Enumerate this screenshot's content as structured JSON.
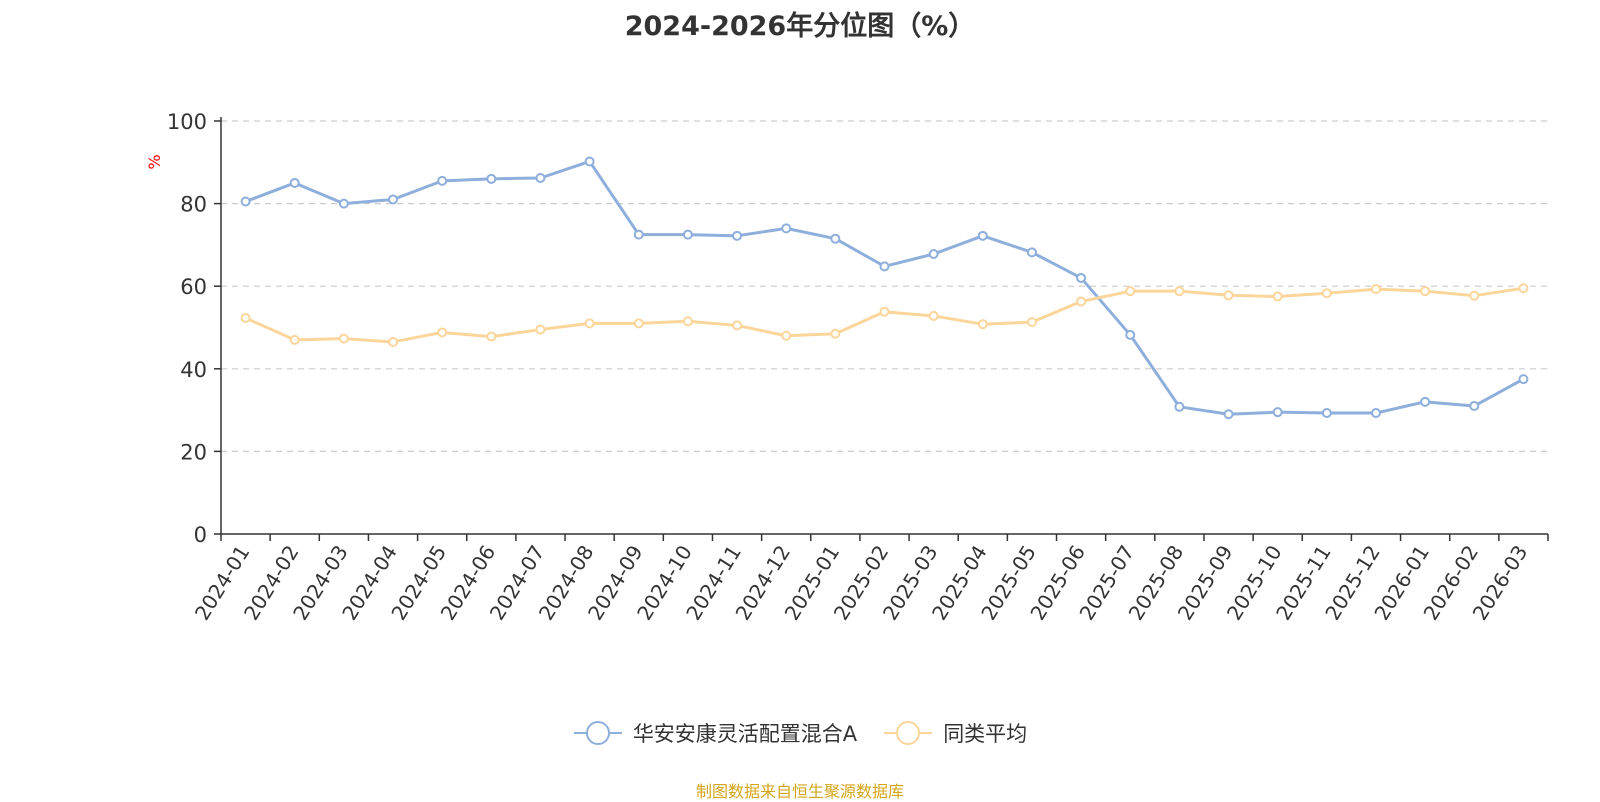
{
  "chart_data": {
    "type": "line",
    "title": "2024-2026年分位图（%）",
    "ylabel": "%",
    "xlabel": "",
    "ylim": [
      0,
      100
    ],
    "yticks": [
      0,
      20,
      40,
      60,
      80,
      100
    ],
    "grid": true,
    "legend_position": "bottom",
    "categories": [
      "2024-01",
      "2024-02",
      "2024-03",
      "2024-04",
      "2024-05",
      "2024-06",
      "2024-07",
      "2024-08",
      "2024-09",
      "2024-10",
      "2024-11",
      "2024-12",
      "2025-01",
      "2025-02",
      "2025-03",
      "2025-04",
      "2025-05",
      "2025-06",
      "2025-07",
      "2025-08",
      "2025-09",
      "2025-10",
      "2025-11",
      "2025-12",
      "2026-01",
      "2026-02",
      "2026-03"
    ],
    "series": [
      {
        "name": "华安安康灵活配置混合A",
        "color": "#8eaedb",
        "values": [
          80.5,
          85.0,
          80.0,
          81.0,
          85.5,
          86.0,
          86.2,
          90.2,
          72.5,
          72.5,
          72.2,
          74.0,
          71.5,
          64.8,
          67.8,
          72.2,
          68.2,
          62.0,
          48.2,
          30.8,
          29.0,
          29.5,
          29.3,
          29.3,
          32.0,
          31.0,
          37.5
        ]
      },
      {
        "name": "同类平均",
        "color": "#fbd59a",
        "values": [
          52.3,
          47.0,
          47.3,
          46.5,
          48.8,
          47.8,
          49.5,
          51.0,
          51.0,
          51.5,
          50.5,
          48.0,
          48.5,
          53.8,
          52.8,
          50.8,
          51.3,
          56.3,
          58.8,
          58.8,
          57.8,
          57.5,
          58.3,
          59.3,
          58.8,
          57.7,
          59.5
        ]
      }
    ]
  },
  "source_text": "制图数据来自恒生聚源数据库"
}
